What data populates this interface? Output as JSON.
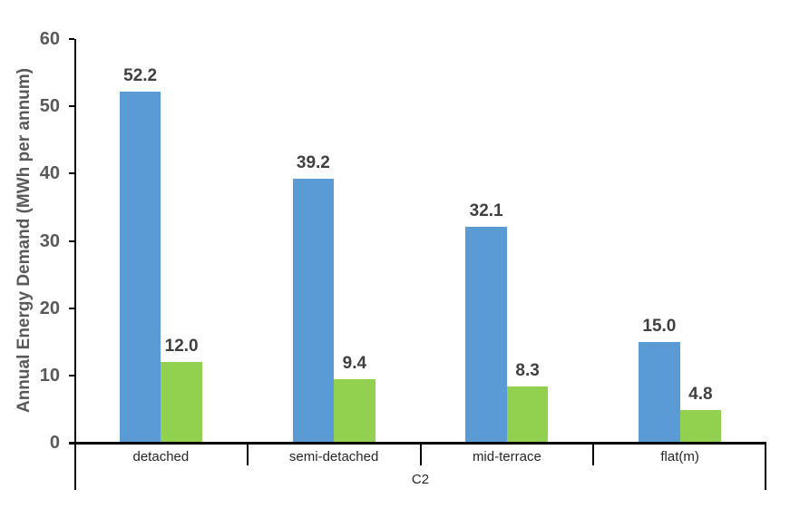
{
  "chart_data": {
    "type": "bar",
    "title": "",
    "xlabel": "C2",
    "ylabel": "Annual Energy Demand (MWh per annum)",
    "categories": [
      "detached",
      "semi-detached",
      "mid-terrace",
      "flat(m)"
    ],
    "series": [
      {
        "id": "blue",
        "color": "#5B9BD5",
        "values": [
          52.2,
          39.2,
          32.1,
          15.0
        ],
        "labels": [
          "52.2",
          "39.2",
          "32.1",
          "15.0"
        ]
      },
      {
        "id": "green",
        "color": "#92D050",
        "values": [
          12.0,
          9.4,
          8.3,
          4.8
        ],
        "labels": [
          "12.0",
          "9.4",
          "8.3",
          "4.8"
        ]
      }
    ],
    "ylim": [
      0,
      60
    ],
    "yticks": [
      0,
      10,
      20,
      30,
      40,
      50,
      60
    ],
    "ytick_labels": [
      "0",
      "10",
      "20",
      "30",
      "40",
      "50",
      "60"
    ],
    "legend_position": "none",
    "grid": false,
    "colors": {
      "axis": "#000000",
      "tick_label": "#595959",
      "data_label": "#404040",
      "category_label": "#262626",
      "axis_title": "#595959"
    }
  }
}
